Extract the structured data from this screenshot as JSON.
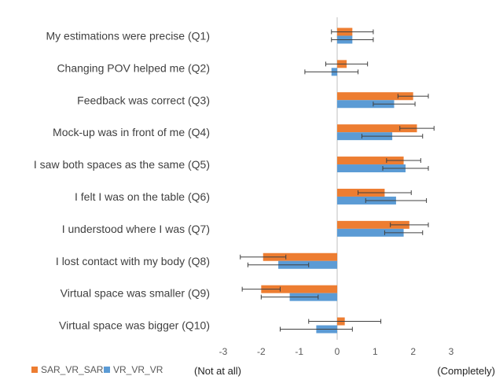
{
  "chart_data": {
    "type": "bar",
    "orientation": "horizontal",
    "categories": [
      "My estimations were precise (Q1)",
      "Changing POV helped me (Q2)",
      "Feedback was correct (Q3)",
      "Mock-up was in front of me (Q4)",
      "I saw both spaces as the same (Q5)",
      "I felt I was on the table (Q6)",
      "I understood where I was (Q7)",
      "I lost contact with my body (Q8)",
      "Virtual space was smaller (Q9)",
      "Virtual space was bigger (Q10)"
    ],
    "series": [
      {
        "name": "SAR_VR_SAR",
        "color": "#ED7D31",
        "values": [
          0.4,
          0.25,
          2.0,
          2.1,
          1.75,
          1.25,
          1.9,
          -1.95,
          -2.0,
          0.2
        ],
        "error": [
          0.55,
          0.55,
          0.4,
          0.45,
          0.45,
          0.7,
          0.5,
          0.6,
          0.5,
          0.95
        ]
      },
      {
        "name": "VR_VR_VR",
        "color": "#5B9BD5",
        "values": [
          0.4,
          -0.15,
          1.5,
          1.45,
          1.8,
          1.55,
          1.75,
          -1.55,
          -1.25,
          -0.55
        ],
        "error": [
          0.55,
          0.7,
          0.55,
          0.8,
          0.6,
          0.8,
          0.5,
          0.8,
          0.75,
          0.95
        ]
      }
    ],
    "xlim": [
      -3,
      3
    ],
    "x_ticks": [
      "-3",
      "-2",
      "-1",
      "0",
      "1",
      "2",
      "3"
    ],
    "x_tick_values": [
      -3,
      -2,
      -1,
      0,
      1,
      2,
      3
    ],
    "x_end_labels": {
      "left": "(Not at all)",
      "right": "(Completely)"
    },
    "legend_position": "bottom-left",
    "grid": false
  }
}
